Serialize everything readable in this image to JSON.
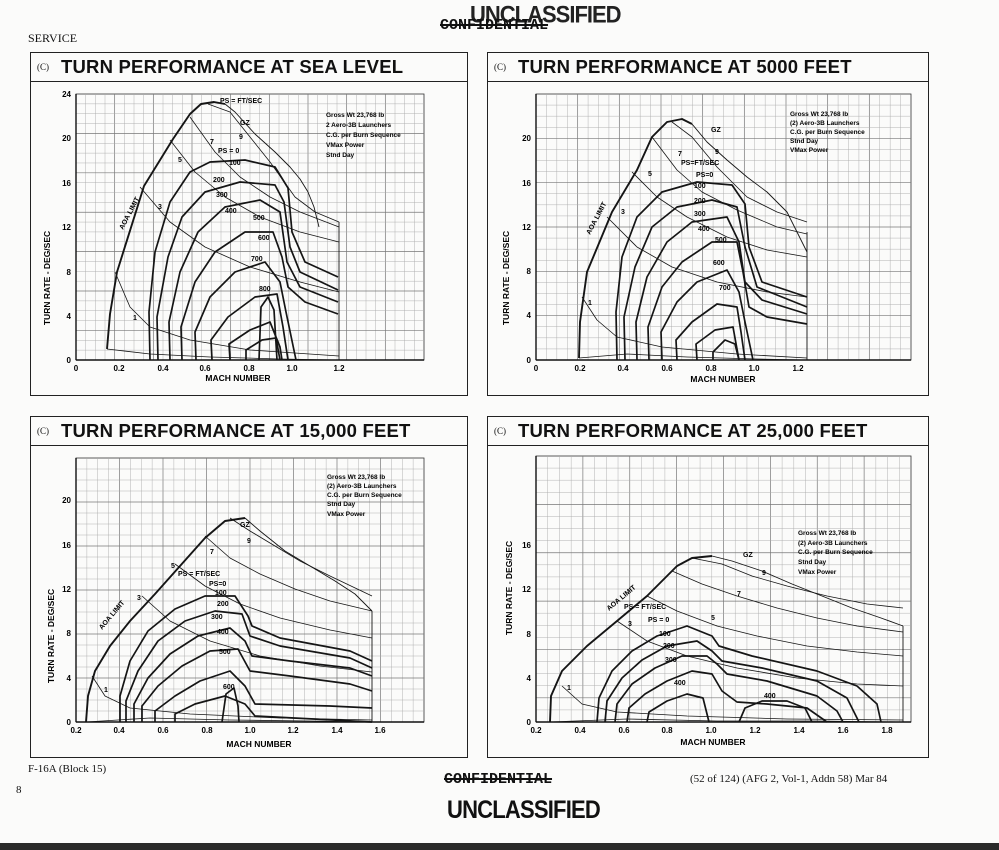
{
  "header": {
    "stamp_unclassified": "UNCLASSIFIED",
    "stamp_confidential": "CONFIDENTIAL",
    "service": "SERVICE"
  },
  "footer": {
    "aircraft": "F-16A (Block 15)",
    "page_number": "8",
    "confidential": "CONFIDENTIAL",
    "unclassified": "UNCLASSIFIED",
    "reference": "(52 of 124)  (AFG 2, Vol-1, Addn 58) Mar 84"
  },
  "panels": [
    {
      "tag": "(C)",
      "title": "TURN PERFORMANCE AT SEA LEVEL",
      "ylabel": "TURN RATE - DEG/SEC",
      "xlabel": "MACH NUMBER",
      "xticks": [
        "0",
        "0.2",
        "0.4",
        "0.6",
        "0.8",
        "1.0",
        "1.2"
      ],
      "yticks": [
        "0",
        "4",
        "8",
        "12",
        "16",
        "20",
        "24"
      ],
      "notes": [
        "Gross Wt 23,768 lb",
        "2 Aero-3B Launchers",
        "C.G. per Burn Sequence",
        "VMax Power",
        "Stnd Day"
      ],
      "aoa_label": "AOA LIMIT",
      "ps_label": "PS = FT/SEC",
      "gz_label": "GZ",
      "g_labels": [
        "9",
        "7",
        "5",
        "3",
        "1"
      ],
      "ps_values": [
        "PS = 0",
        "100",
        "200",
        "300",
        "400",
        "500",
        "600",
        "700",
        "800"
      ]
    },
    {
      "tag": "(C)",
      "title": "TURN PERFORMANCE AT 5000 FEET",
      "ylabel": "TURN RATE - DEG/SEC",
      "xlabel": "MACH NUMBER",
      "xticks": [
        "0",
        "0.2",
        "0.4",
        "0.6",
        "0.8",
        "1.0",
        "1.2"
      ],
      "yticks": [
        "0",
        "4",
        "8",
        "12",
        "16",
        "20"
      ],
      "notes": [
        "Gross Wt 23,768 lb",
        "(2) Aero-3B Launchers",
        "C.G. per Burn Sequence",
        "Stnd Day",
        "VMax Power"
      ],
      "aoa_label": "AOA LIMIT",
      "ps_label": "PS=FT/SEC",
      "gz_label": "GZ",
      "g_labels": [
        "9",
        "7",
        "5",
        "3",
        "1"
      ],
      "ps_values": [
        "PS=0",
        "100",
        "200",
        "300",
        "400",
        "500",
        "600",
        "700"
      ]
    },
    {
      "tag": "(C)",
      "title": "TURN PERFORMANCE AT 15,000 FEET",
      "ylabel": "TURN RATE - DEG/SEC",
      "xlabel": "MACH NUMBER",
      "xticks": [
        "0.2",
        "0.4",
        "0.6",
        "0.8",
        "1.0",
        "1.2",
        "1.4",
        "1.6"
      ],
      "yticks": [
        "0",
        "4",
        "8",
        "12",
        "16",
        "20"
      ],
      "notes": [
        "Gross Wt 23,768 lb",
        "(2) Aero-3B Launchers",
        "C.G. per Burn Sequence",
        "Stnd Day",
        "VMax Power"
      ],
      "aoa_label": "AOA LIMIT",
      "ps_label": "PS = FT/SEC",
      "gz_label": "GZ",
      "g_labels": [
        "9",
        "7",
        "5",
        "3",
        "1"
      ],
      "ps_values": [
        "PS=0",
        "100",
        "200",
        "300",
        "400",
        "500",
        "600"
      ]
    },
    {
      "tag": "(C)",
      "title": "TURN PERFORMANCE AT 25,000 FEET",
      "ylabel": "TURN RATE - DEG/SEC",
      "xlabel": "MACH NUMBER",
      "xticks": [
        "0.2",
        "0.4",
        "0.6",
        "0.8",
        "1.0",
        "1.2",
        "1.4",
        "1.6",
        "1.8"
      ],
      "yticks": [
        "0",
        "4",
        "8",
        "12",
        "16"
      ],
      "notes": [
        "Gross Wt 23,768 lb",
        "(2) Aero-3B Launchers",
        "C.G. per Burn Sequence",
        "Stnd Day",
        "VMax Power"
      ],
      "aoa_label": "AOA LIMIT",
      "ps_label": "PS = FT/SEC",
      "gz_label": "GZ",
      "g_labels": [
        "9",
        "7",
        "5",
        "3",
        "1"
      ],
      "ps_values": [
        "PS = 0",
        "100",
        "200",
        "300",
        "400",
        "400"
      ]
    }
  ]
}
